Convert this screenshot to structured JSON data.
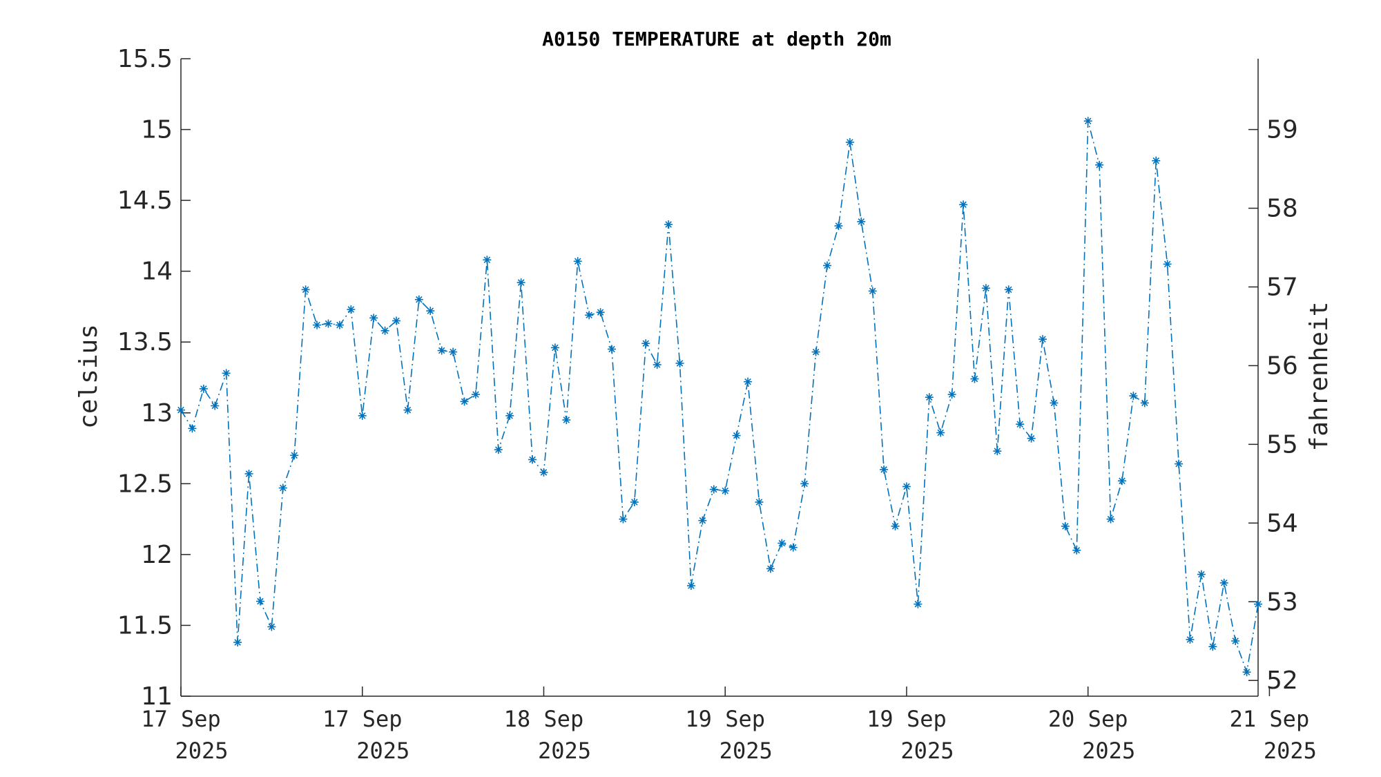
{
  "chart_data": {
    "type": "line",
    "title": "A0150 TEMPERATURE at depth 20m",
    "ylabel": "celsius",
    "ylabel_right": "fahrenheit",
    "xlabel": "",
    "ylim": [
      11,
      15.5
    ],
    "yticks": [
      "11",
      "11.5",
      "12",
      "12.5",
      "13",
      "13.5",
      "14",
      "14.5",
      "15",
      "15.5"
    ],
    "yticks_right": [
      "52",
      "53",
      "54",
      "55",
      "56",
      "57",
      "58",
      "59"
    ],
    "xlim": [
      0,
      95
    ],
    "xticks": [
      {
        "day": "17 Sep",
        "year": "2025",
        "pos": 0
      },
      {
        "day": "17 Sep",
        "year": "2025",
        "pos": 16
      },
      {
        "day": "18 Sep",
        "year": "2025",
        "pos": 32
      },
      {
        "day": "19 Sep",
        "year": "2025",
        "pos": 48
      },
      {
        "day": "19 Sep",
        "year": "2025",
        "pos": 64
      },
      {
        "day": "20 Sep",
        "year": "2025",
        "pos": 80
      },
      {
        "day": "21 Sep",
        "year": "2025",
        "pos": 96
      }
    ],
    "grid": false,
    "color": "#0072BD",
    "series": [
      {
        "values": [
          13.02,
          12.89,
          13.17,
          13.05,
          13.28,
          11.38,
          12.57,
          11.67,
          11.49,
          12.47,
          12.7,
          13.87,
          13.62,
          13.63,
          13.62,
          13.73,
          12.98,
          13.67,
          13.58,
          13.65,
          13.02,
          13.8,
          13.72,
          13.44,
          13.43,
          13.08,
          13.13,
          14.08,
          12.74,
          12.98,
          13.92,
          12.67,
          12.58,
          13.46,
          12.95,
          14.07,
          13.69,
          13.71,
          13.45,
          12.25,
          12.37,
          13.49,
          13.34,
          14.33,
          13.35,
          11.78,
          12.24,
          12.46,
          12.45,
          12.84,
          13.22,
          12.37,
          11.9,
          12.08,
          12.05,
          12.5,
          13.43,
          14.04,
          14.32,
          14.91,
          14.35,
          13.86,
          12.6,
          12.2,
          12.48,
          11.65,
          13.11,
          12.86,
          13.13,
          14.47,
          13.24,
          13.88,
          12.73,
          13.87,
          12.92,
          12.82,
          13.52,
          13.07,
          12.2,
          12.03,
          15.06,
          14.75,
          12.25,
          12.52,
          13.12,
          13.07,
          14.78,
          14.05,
          12.64,
          11.4,
          11.86,
          11.35,
          11.8,
          11.39,
          11.17,
          11.65
        ]
      }
    ]
  }
}
